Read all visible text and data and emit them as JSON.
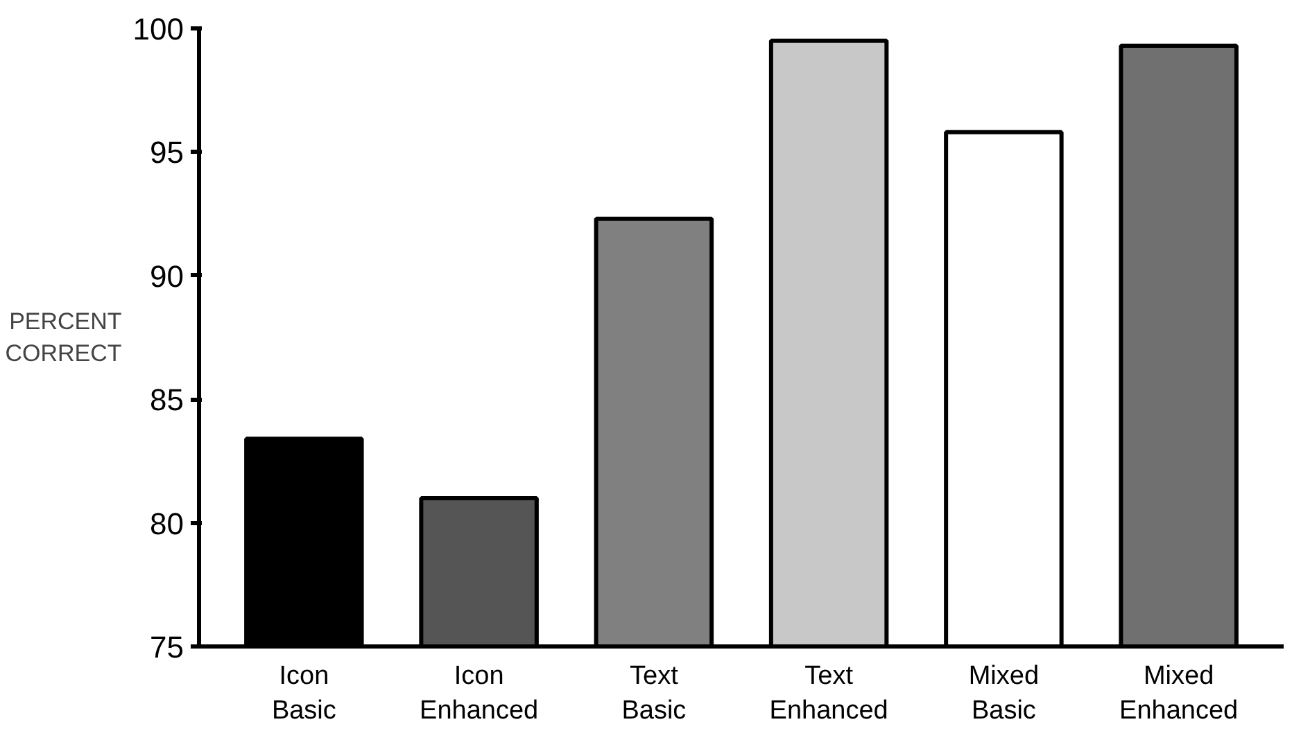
{
  "chart_data": {
    "type": "bar",
    "ylabel": "PERCENT\nCORRECT",
    "categories": [
      "Icon\nBasic",
      "Icon\nEnhanced",
      "Text\nBasic",
      "Text\nEnhanced",
      "Mixed\nBasic",
      "Mixed\nEnhanced"
    ],
    "values": [
      83.4,
      81.0,
      92.3,
      99.5,
      95.8,
      99.3
    ],
    "colors": [
      "#000000",
      "#555555",
      "#808080",
      "#c8c8c8",
      "#ffffff",
      "#707070"
    ],
    "ylim": [
      75,
      100
    ],
    "yticks": [
      75,
      80,
      85,
      90,
      95,
      100
    ],
    "grid": false
  }
}
